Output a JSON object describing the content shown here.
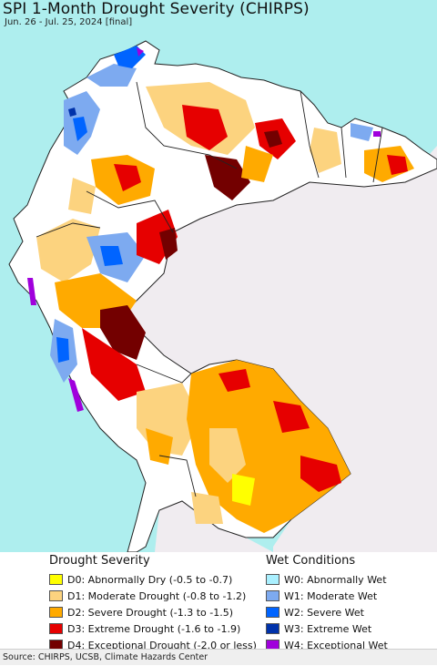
{
  "header": {
    "title": "SPI 1-Month Drought Severity (CHIRPS)",
    "subtitle": "Jun. 26 - Jul. 25, 2024 [final]"
  },
  "colors": {
    "ocean": "#aeeeee",
    "outside_land": "#f0ecf0",
    "land_normal": "#ffffff",
    "borders": "#222222"
  },
  "legend": {
    "drought_heading": "Drought Severity",
    "wet_heading": "Wet Conditions",
    "drought_items": [
      {
        "label": "D0: Abnormally Dry (-0.5 to -0.7)",
        "color": "#ffff00"
      },
      {
        "label": "D1: Moderate Drought (-0.8 to -1.2)",
        "color": "#fcd37f"
      },
      {
        "label": "D2: Severe Drought (-1.3 to -1.5)",
        "color": "#ffaa00"
      },
      {
        "label": "D3: Extreme Drought (-1.6 to -1.9)",
        "color": "#e60000"
      },
      {
        "label": "D4: Exceptional Drought (-2.0 or less)",
        "color": "#730000"
      }
    ],
    "wet_items": [
      {
        "label": "W0: Abnormally Wet",
        "color": "#aaf0ff"
      },
      {
        "label": "W1: Moderate Wet",
        "color": "#7daaf0"
      },
      {
        "label": "W2: Severe Wet",
        "color": "#0064ff"
      },
      {
        "label": "W3: Extreme Wet",
        "color": "#0032aa"
      },
      {
        "label": "W4: Exceptional Wet",
        "color": "#a000dc"
      }
    ]
  },
  "footer": {
    "source": "Source: CHIRPS, UCSB, Climate Hazards Center"
  }
}
